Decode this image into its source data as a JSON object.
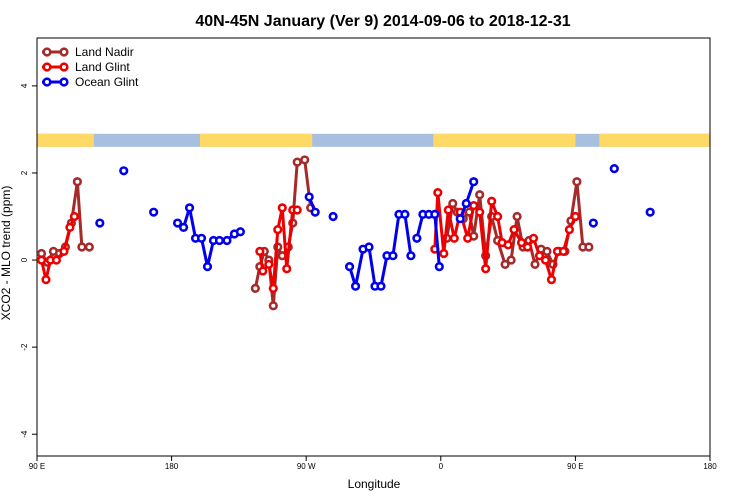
{
  "chart_data": {
    "type": "line",
    "title": "40N-45N January (Ver 9)   2014-09-06 to 2018-12-31",
    "xlabel": "Longitude",
    "ylabel": "XCO2 - MLO trend (ppm)",
    "xlim": [
      90,
      540
    ],
    "ylim": [
      -4.5,
      5.1
    ],
    "x_ticks": [
      {
        "value": 90,
        "label": "90 E"
      },
      {
        "value": 180,
        "label": "180"
      },
      {
        "value": 270,
        "label": "90 W"
      },
      {
        "value": 360,
        "label": "0"
      },
      {
        "value": 450,
        "label": "90 E"
      },
      {
        "value": 540,
        "label": "180"
      }
    ],
    "y_ticks": [
      {
        "value": -4,
        "label": "-4"
      },
      {
        "value": -2,
        "label": "-2"
      },
      {
        "value": 0,
        "label": "0"
      },
      {
        "value": 2,
        "label": "2"
      },
      {
        "value": 4,
        "label": "4"
      }
    ],
    "legend_position": "top-left",
    "land_ocean_strip": {
      "y_range": [
        2.6,
        2.9
      ],
      "land_color": "#ffd966",
      "ocean_color": "#a8bfe0"
    },
    "series": [
      {
        "name": "Land Nadir",
        "color": "#a52a2a",
        "segments": [
          [
            [
              93,
              0.15
            ],
            [
              97,
              -0.05
            ],
            [
              101,
              0.2
            ],
            [
              105,
              0.15
            ],
            [
              109,
              0.3
            ],
            [
              113,
              0.85
            ],
            [
              117,
              1.8
            ],
            [
              120,
              0.3
            ],
            [
              125,
              0.3
            ]
          ],
          [
            [
              236,
              -0.65
            ],
            [
              239,
              -0.15
            ],
            [
              242,
              0.2
            ],
            [
              245,
              0
            ],
            [
              248,
              -1.05
            ],
            [
              251,
              0.3
            ],
            [
              254,
              0.1
            ],
            [
              258,
              0.3
            ],
            [
              261,
              0.85
            ],
            [
              264,
              2.25
            ],
            [
              269,
              2.3
            ],
            [
              273,
              1.2
            ]
          ],
          [
            [
              364,
              0.5
            ],
            [
              368,
              1.3
            ],
            [
              371,
              1.1
            ],
            [
              375,
              0.95
            ],
            [
              379,
              1.1
            ],
            [
              382,
              0.55
            ],
            [
              386,
              1.5
            ],
            [
              390,
              0.1
            ],
            [
              394,
              1
            ],
            [
              398,
              0.45
            ],
            [
              403,
              -0.1
            ],
            [
              407,
              0
            ],
            [
              411,
              1
            ],
            [
              415,
              0.3
            ],
            [
              419,
              0.45
            ],
            [
              423,
              -0.1
            ],
            [
              427,
              0.25
            ],
            [
              431,
              0.2
            ],
            [
              435,
              -0.1
            ],
            [
              439,
              0.2
            ],
            [
              443,
              0.2
            ],
            [
              447,
              0.9
            ],
            [
              451,
              1.8
            ],
            [
              455,
              0.3
            ],
            [
              459,
              0.3
            ]
          ]
        ]
      },
      {
        "name": "Land Glint",
        "color": "#ee0000",
        "segments": [
          [
            [
              93,
              0
            ],
            [
              96,
              -0.45
            ],
            [
              99,
              0
            ],
            [
              103,
              0
            ],
            [
              108,
              0.2
            ],
            [
              112,
              0.75
            ],
            [
              115,
              1
            ]
          ],
          [
            [
              239,
              0.2
            ],
            [
              241,
              -0.25
            ],
            [
              245,
              -0.1
            ],
            [
              248,
              -0.65
            ],
            [
              251,
              0.7
            ],
            [
              254,
              1.2
            ],
            [
              257,
              -0.2
            ],
            [
              261,
              1.15
            ],
            [
              264,
              1.15
            ]
          ],
          [
            [
              356,
              0.25
            ],
            [
              358,
              1.55
            ],
            [
              362,
              0.15
            ],
            [
              365,
              1.15
            ],
            [
              369,
              0.5
            ],
            [
              373,
              1.1
            ],
            [
              378,
              0.5
            ],
            [
              382,
              1.25
            ],
            [
              386,
              1.1
            ],
            [
              390,
              -0.2
            ],
            [
              394,
              1.35
            ],
            [
              398,
              1
            ],
            [
              401,
              0.4
            ],
            [
              405,
              0.35
            ],
            [
              409,
              0.7
            ],
            [
              414,
              0.4
            ],
            [
              418,
              0.3
            ],
            [
              422,
              0.5
            ],
            [
              426,
              0.1
            ],
            [
              430,
              0
            ],
            [
              434,
              -0.45
            ],
            [
              438,
              0.2
            ],
            [
              442,
              0.2
            ],
            [
              446,
              0.7
            ],
            [
              450,
              1
            ]
          ]
        ]
      },
      {
        "name": "Ocean Glint",
        "color": "#0000ee",
        "segments": [
          [
            [
              132,
              0.85
            ]
          ],
          [
            [
              148,
              2.05
            ]
          ],
          [
            [
              168,
              1.1
            ]
          ],
          [
            [
              184,
              0.85
            ],
            [
              188,
              0.75
            ],
            [
              192,
              1.2
            ],
            [
              196,
              0.5
            ],
            [
              200,
              0.5
            ],
            [
              204,
              -0.15
            ],
            [
              208,
              0.45
            ],
            [
              212,
              0.45
            ],
            [
              217,
              0.45
            ],
            [
              222,
              0.6
            ],
            [
              226,
              0.65
            ]
          ],
          [
            [
              272,
              1.45
            ],
            [
              276,
              1.1
            ]
          ],
          [
            [
              288,
              1
            ]
          ],
          [
            [
              299,
              -0.15
            ],
            [
              303,
              -0.6
            ],
            [
              308,
              0.25
            ],
            [
              312,
              0.3
            ],
            [
              316,
              -0.6
            ],
            [
              320,
              -0.6
            ],
            [
              324,
              0.1
            ],
            [
              328,
              0.1
            ],
            [
              332,
              1.05
            ],
            [
              336,
              1.05
            ],
            [
              340,
              0.1
            ]
          ],
          [
            [
              344,
              0.5
            ],
            [
              348,
              1.05
            ],
            [
              352,
              1.05
            ],
            [
              356,
              1.05
            ],
            [
              359,
              -0.15
            ]
          ],
          [
            [
              373,
              0.95
            ],
            [
              377,
              1.3
            ],
            [
              382,
              1.8
            ]
          ],
          [
            [
              462,
              0.85
            ]
          ],
          [
            [
              476,
              2.1
            ]
          ],
          [
            [
              500,
              1.1
            ]
          ]
        ]
      }
    ]
  }
}
